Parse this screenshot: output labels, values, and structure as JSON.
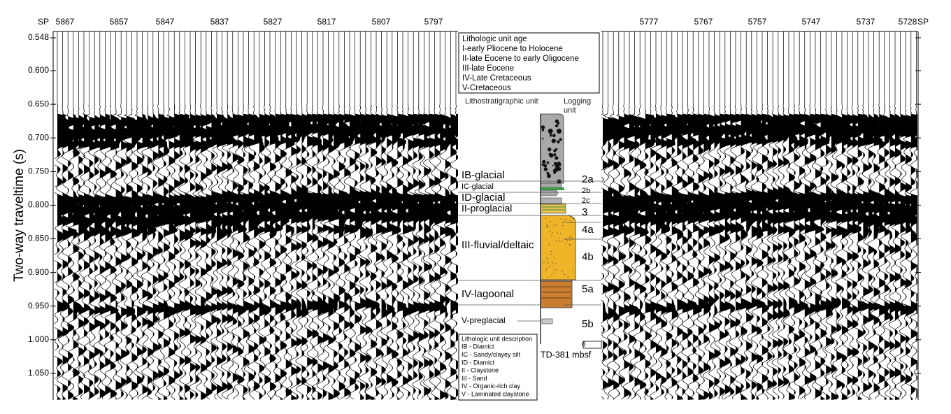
{
  "figure": {
    "y_axis_title": "Two-way traveltime (s)",
    "y_ticks": [
      "0.548",
      "0.600",
      "0.650",
      "0.700",
      "0.750",
      "0.800",
      "0.850",
      "0.900",
      "0.950",
      "1.000",
      "1.050"
    ],
    "shotpoints_left": [
      "SP",
      "5867",
      "5857",
      "5847",
      "5837",
      "5827",
      "5817",
      "5807",
      "5797"
    ],
    "shotpoints_right": [
      "5777",
      "5767",
      "5757",
      "5747",
      "5737",
      "5728",
      "SP"
    ],
    "age_legend": [
      "Lithologic unit age",
      "I-early Pliocene to Holocene",
      "II-late Eocene to early Oligocene",
      "III-late Eocene",
      "IV-Late Cretaceous",
      "V-Cretaceous"
    ],
    "column_headers": {
      "lithostratigraphic": "Lithostratigraphic unit",
      "logging": "Logging unit"
    },
    "litho_units": [
      "IB-glacial",
      "IC-glacial",
      "ID-glacial",
      "II-proglacial",
      "III-fluvial/deltaic",
      "IV-lagoonal",
      "V-preglacial"
    ],
    "logging_units": [
      "2a",
      "2b",
      "2c",
      "3",
      "4a",
      "4b",
      "5a",
      "5b",
      "6"
    ],
    "total_depth": "TD-381 mbsf",
    "description_legend": [
      "Lithologic unit description",
      "IB - Diamict",
      "IC - Sandy/clayey silt",
      "ID - Diamict",
      "II - Claystone",
      "III - Sand",
      "IV - Organic-rich clay",
      "V - Laminated claystone"
    ]
  }
}
